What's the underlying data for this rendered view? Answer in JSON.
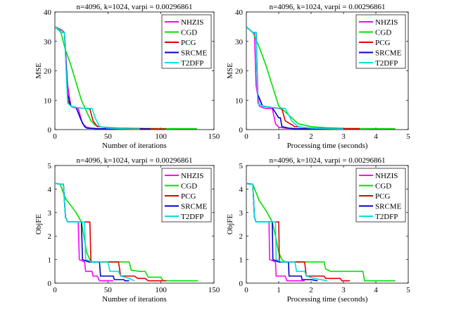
{
  "chart_data": [
    {
      "type": "line",
      "title": "n=4096, k=1024, varpi = 0.00296861",
      "xlabel": "Number of iterations",
      "ylabel": "MSE",
      "xlim": [
        0,
        150
      ],
      "ylim": [
        0,
        40
      ],
      "xticks": [
        "0",
        "50",
        "100",
        "150"
      ],
      "yticks": [
        "0",
        "10",
        "20",
        "30",
        "40"
      ],
      "legend": "top-right",
      "series": [
        {
          "name": "NHZIS",
          "color": "#ff00ff",
          "x": [
            0,
            3,
            6,
            9,
            12,
            15,
            18,
            22,
            26,
            30,
            34,
            40,
            50,
            60,
            70,
            80
          ],
          "y": [
            35,
            34.5,
            34,
            33,
            15,
            8,
            7.5,
            7.2,
            2,
            0.8,
            0.5,
            0.3,
            0.25,
            0.2,
            0.2,
            0.2
          ]
        },
        {
          "name": "CGD",
          "color": "#00e000",
          "x": [
            0,
            5,
            10,
            15,
            20,
            25,
            30,
            34,
            38,
            42,
            50,
            60,
            80,
            100,
            120,
            134
          ],
          "y": [
            35,
            34,
            27,
            22,
            16,
            10,
            6,
            3,
            1.5,
            1,
            0.7,
            0.5,
            0.4,
            0.35,
            0.3,
            0.3
          ]
        },
        {
          "name": "PCG",
          "color": "#e00000",
          "x": [
            0,
            3,
            6,
            9,
            12,
            15,
            20,
            25,
            30,
            33,
            36,
            40,
            50,
            60,
            80,
            100,
            105
          ],
          "y": [
            35,
            34,
            33,
            33,
            10,
            8,
            7.5,
            7.3,
            7.2,
            7,
            3,
            1,
            0.6,
            0.4,
            0.3,
            0.25,
            0.2
          ]
        },
        {
          "name": "SRCME",
          "color": "#0000cc",
          "x": [
            0,
            3,
            6,
            9,
            12,
            15,
            20,
            25,
            28,
            30,
            35,
            40,
            50,
            60,
            70,
            80,
            90
          ],
          "y": [
            35,
            34,
            33,
            33,
            12,
            8,
            7.5,
            3,
            1,
            0.5,
            0.4,
            0.3,
            0.25,
            0.2,
            0.2,
            0.2,
            0.2
          ]
        },
        {
          "name": "T2DFP",
          "color": "#00e0e0",
          "x": [
            0,
            3,
            6,
            9,
            12,
            15,
            20,
            25,
            30,
            35,
            38,
            42,
            50,
            60,
            70,
            80
          ],
          "y": [
            35,
            34,
            33,
            33,
            9,
            8,
            7.5,
            7.3,
            7.2,
            7.2,
            4,
            1,
            0.5,
            0.3,
            0.25,
            0.2
          ]
        }
      ]
    },
    {
      "type": "line",
      "title": "n=4096, k=1024, varpi = 0.00296861",
      "xlabel": "Processing time (seconds)",
      "ylabel": "MSE",
      "xlim": [
        0,
        5
      ],
      "ylim": [
        0,
        40
      ],
      "xticks": [
        "0",
        "1",
        "2",
        "3",
        "4",
        "5"
      ],
      "yticks": [
        "0",
        "10",
        "20",
        "30",
        "40"
      ],
      "legend": "top-right",
      "series": [
        {
          "name": "NHZIS",
          "color": "#ff00ff",
          "x": [
            0,
            0.1,
            0.2,
            0.25,
            0.3,
            0.4,
            0.5,
            0.6,
            0.8,
            0.9,
            1.0,
            1.2,
            1.5,
            2.0,
            2.5
          ],
          "y": [
            35,
            34,
            33,
            33,
            15,
            8,
            7.5,
            7.2,
            7.2,
            2,
            0.8,
            0.5,
            0.3,
            0.25,
            0.2
          ]
        },
        {
          "name": "CGD",
          "color": "#00e000",
          "x": [
            0,
            0.2,
            0.4,
            0.6,
            0.8,
            1.0,
            1.2,
            1.4,
            1.6,
            2.0,
            2.5,
            3.0,
            3.5,
            4.0,
            4.6
          ],
          "y": [
            35,
            33,
            28,
            22,
            15,
            8,
            6,
            4,
            2,
            1,
            0.6,
            0.4,
            0.35,
            0.3,
            0.3
          ]
        },
        {
          "name": "PCG",
          "color": "#e00000",
          "x": [
            0,
            0.1,
            0.2,
            0.3,
            0.35,
            0.5,
            0.8,
            1.0,
            1.1,
            1.2,
            1.5,
            2.0,
            3.0,
            3.5
          ],
          "y": [
            35,
            34,
            33,
            33,
            12,
            8,
            7.5,
            7.2,
            7,
            3,
            1,
            0.5,
            0.3,
            0.3
          ]
        },
        {
          "name": "SRCME",
          "color": "#0000cc",
          "x": [
            0,
            0.1,
            0.2,
            0.3,
            0.35,
            0.5,
            0.8,
            1.0,
            1.05,
            1.1,
            1.3,
            1.5,
            2.0,
            2.5,
            3.0
          ],
          "y": [
            35,
            34,
            33,
            33,
            12,
            8,
            7.5,
            4,
            4,
            1,
            0.5,
            0.3,
            0.25,
            0.2,
            0.2
          ]
        },
        {
          "name": "T2DFP",
          "color": "#00e0e0",
          "x": [
            0,
            0.1,
            0.2,
            0.3,
            0.35,
            0.5,
            0.8,
            1.0,
            1.2,
            1.4,
            1.6,
            2.0,
            2.5,
            3.0
          ],
          "y": [
            35,
            34,
            33,
            33,
            9,
            8,
            7.5,
            7.3,
            7.2,
            3,
            1,
            0.5,
            0.3,
            0.2
          ]
        }
      ]
    },
    {
      "type": "line",
      "title": "n=4096, k=1024, varpi = 0.00296861",
      "xlabel": "Number of iterations",
      "ylabel": "ObjFE",
      "xlim": [
        0,
        150
      ],
      "ylim": [
        0,
        5
      ],
      "xticks": [
        "0",
        "50",
        "100",
        "150"
      ],
      "yticks": [
        "0",
        "1",
        "2",
        "3",
        "4",
        "5"
      ],
      "legend": "top-right",
      "series": [
        {
          "name": "NHZIS",
          "color": "#ff00ff",
          "x": [
            0,
            5,
            8,
            10,
            12,
            22,
            23,
            28,
            29,
            35,
            36,
            40,
            42,
            50,
            55
          ],
          "y": [
            4.25,
            4.2,
            4.2,
            2.8,
            2.6,
            2.6,
            1.0,
            0.9,
            0.5,
            0.5,
            0.3,
            0.3,
            0.1,
            0.1,
            0.1
          ]
        },
        {
          "name": "CGD",
          "color": "#00e000",
          "x": [
            0,
            5,
            10,
            15,
            20,
            25,
            30,
            33,
            35,
            70,
            72,
            80,
            85,
            88,
            100,
            102,
            135
          ],
          "y": [
            4.25,
            4.2,
            3.6,
            3.3,
            3.0,
            2.6,
            1.3,
            1.0,
            0.9,
            0.9,
            0.55,
            0.5,
            0.5,
            0.25,
            0.25,
            0.1,
            0.1
          ]
        },
        {
          "name": "PCG",
          "color": "#e00000",
          "x": [
            0,
            5,
            8,
            10,
            12,
            33,
            34,
            40,
            60,
            62,
            75,
            78,
            85,
            88,
            105
          ],
          "y": [
            4.25,
            4.2,
            4.2,
            2.8,
            2.6,
            2.6,
            0.9,
            0.9,
            0.9,
            0.3,
            0.3,
            0.2,
            0.2,
            0.1,
            0.1
          ]
        },
        {
          "name": "SRCME",
          "color": "#0000cc",
          "x": [
            0,
            5,
            8,
            10,
            12,
            25,
            26,
            32,
            42,
            43,
            55,
            56,
            65,
            66,
            70
          ],
          "y": [
            4.25,
            4.2,
            4.2,
            2.8,
            2.6,
            2.6,
            1.0,
            0.9,
            0.9,
            0.3,
            0.3,
            0.15,
            0.15,
            0.1,
            0.1
          ]
        },
        {
          "name": "T2DFP",
          "color": "#00e0e0",
          "x": [
            0,
            5,
            8,
            10,
            12,
            28,
            29,
            35,
            50,
            52,
            60,
            62,
            70,
            75
          ],
          "y": [
            4.25,
            4.2,
            4.2,
            2.8,
            2.6,
            2.6,
            1.0,
            0.9,
            0.9,
            0.5,
            0.5,
            0.3,
            0.2,
            0.1
          ]
        }
      ]
    },
    {
      "type": "line",
      "title": "n=4096, k=1024, varpi = 0.00296861",
      "xlabel": "Processing time (seconds)",
      "ylabel": "ObjFE",
      "xlim": [
        0,
        5
      ],
      "ylim": [
        0,
        5
      ],
      "xticks": [
        "0",
        "1",
        "2",
        "3",
        "4",
        "5"
      ],
      "yticks": [
        "0",
        "1",
        "2",
        "3",
        "4",
        "5"
      ],
      "legend": "top-right",
      "series": [
        {
          "name": "NHZIS",
          "color": "#ff00ff",
          "x": [
            0,
            0.1,
            0.2,
            0.25,
            0.3,
            0.7,
            0.72,
            0.9,
            0.92,
            1.2,
            1.25,
            1.4,
            1.45,
            1.8
          ],
          "y": [
            4.25,
            4.2,
            4.2,
            2.8,
            2.6,
            2.6,
            1.0,
            0.9,
            0.3,
            0.3,
            0.1,
            0.1,
            0.1,
            0.1
          ]
        },
        {
          "name": "CGD",
          "color": "#00e000",
          "x": [
            0,
            0.2,
            0.4,
            0.6,
            0.8,
            0.9,
            1.0,
            1.1,
            1.2,
            2.4,
            2.45,
            2.6,
            2.8,
            3.6,
            3.65,
            4.6
          ],
          "y": [
            4.25,
            4.2,
            3.5,
            3.1,
            2.6,
            2.0,
            1.3,
            1.0,
            0.9,
            0.9,
            0.6,
            0.5,
            0.5,
            0.5,
            0.1,
            0.1
          ]
        },
        {
          "name": "PCG",
          "color": "#e00000",
          "x": [
            0,
            0.1,
            0.2,
            0.25,
            0.3,
            1.0,
            1.02,
            1.3,
            1.8,
            1.85,
            2.4,
            2.45,
            2.9,
            2.95,
            3.2
          ],
          "y": [
            4.25,
            4.2,
            4.2,
            2.8,
            2.6,
            2.6,
            0.9,
            0.9,
            0.9,
            0.3,
            0.3,
            0.2,
            0.2,
            0.1,
            0.1
          ]
        },
        {
          "name": "SRCME",
          "color": "#0000cc",
          "x": [
            0,
            0.1,
            0.2,
            0.25,
            0.3,
            0.8,
            0.82,
            1.0,
            1.3,
            1.32,
            1.7,
            1.72,
            2.0,
            2.2
          ],
          "y": [
            4.25,
            4.2,
            4.2,
            2.8,
            2.6,
            2.6,
            1.0,
            0.9,
            0.9,
            0.3,
            0.3,
            0.15,
            0.15,
            0.1
          ]
        },
        {
          "name": "T2DFP",
          "color": "#00e0e0",
          "x": [
            0,
            0.1,
            0.2,
            0.25,
            0.3,
            0.9,
            0.92,
            1.1,
            1.5,
            1.55,
            1.8,
            1.85,
            2.1,
            2.5
          ],
          "y": [
            4.25,
            4.2,
            4.2,
            2.8,
            2.6,
            2.6,
            1.0,
            0.9,
            0.9,
            0.5,
            0.5,
            0.3,
            0.2,
            0.1
          ]
        }
      ]
    }
  ]
}
